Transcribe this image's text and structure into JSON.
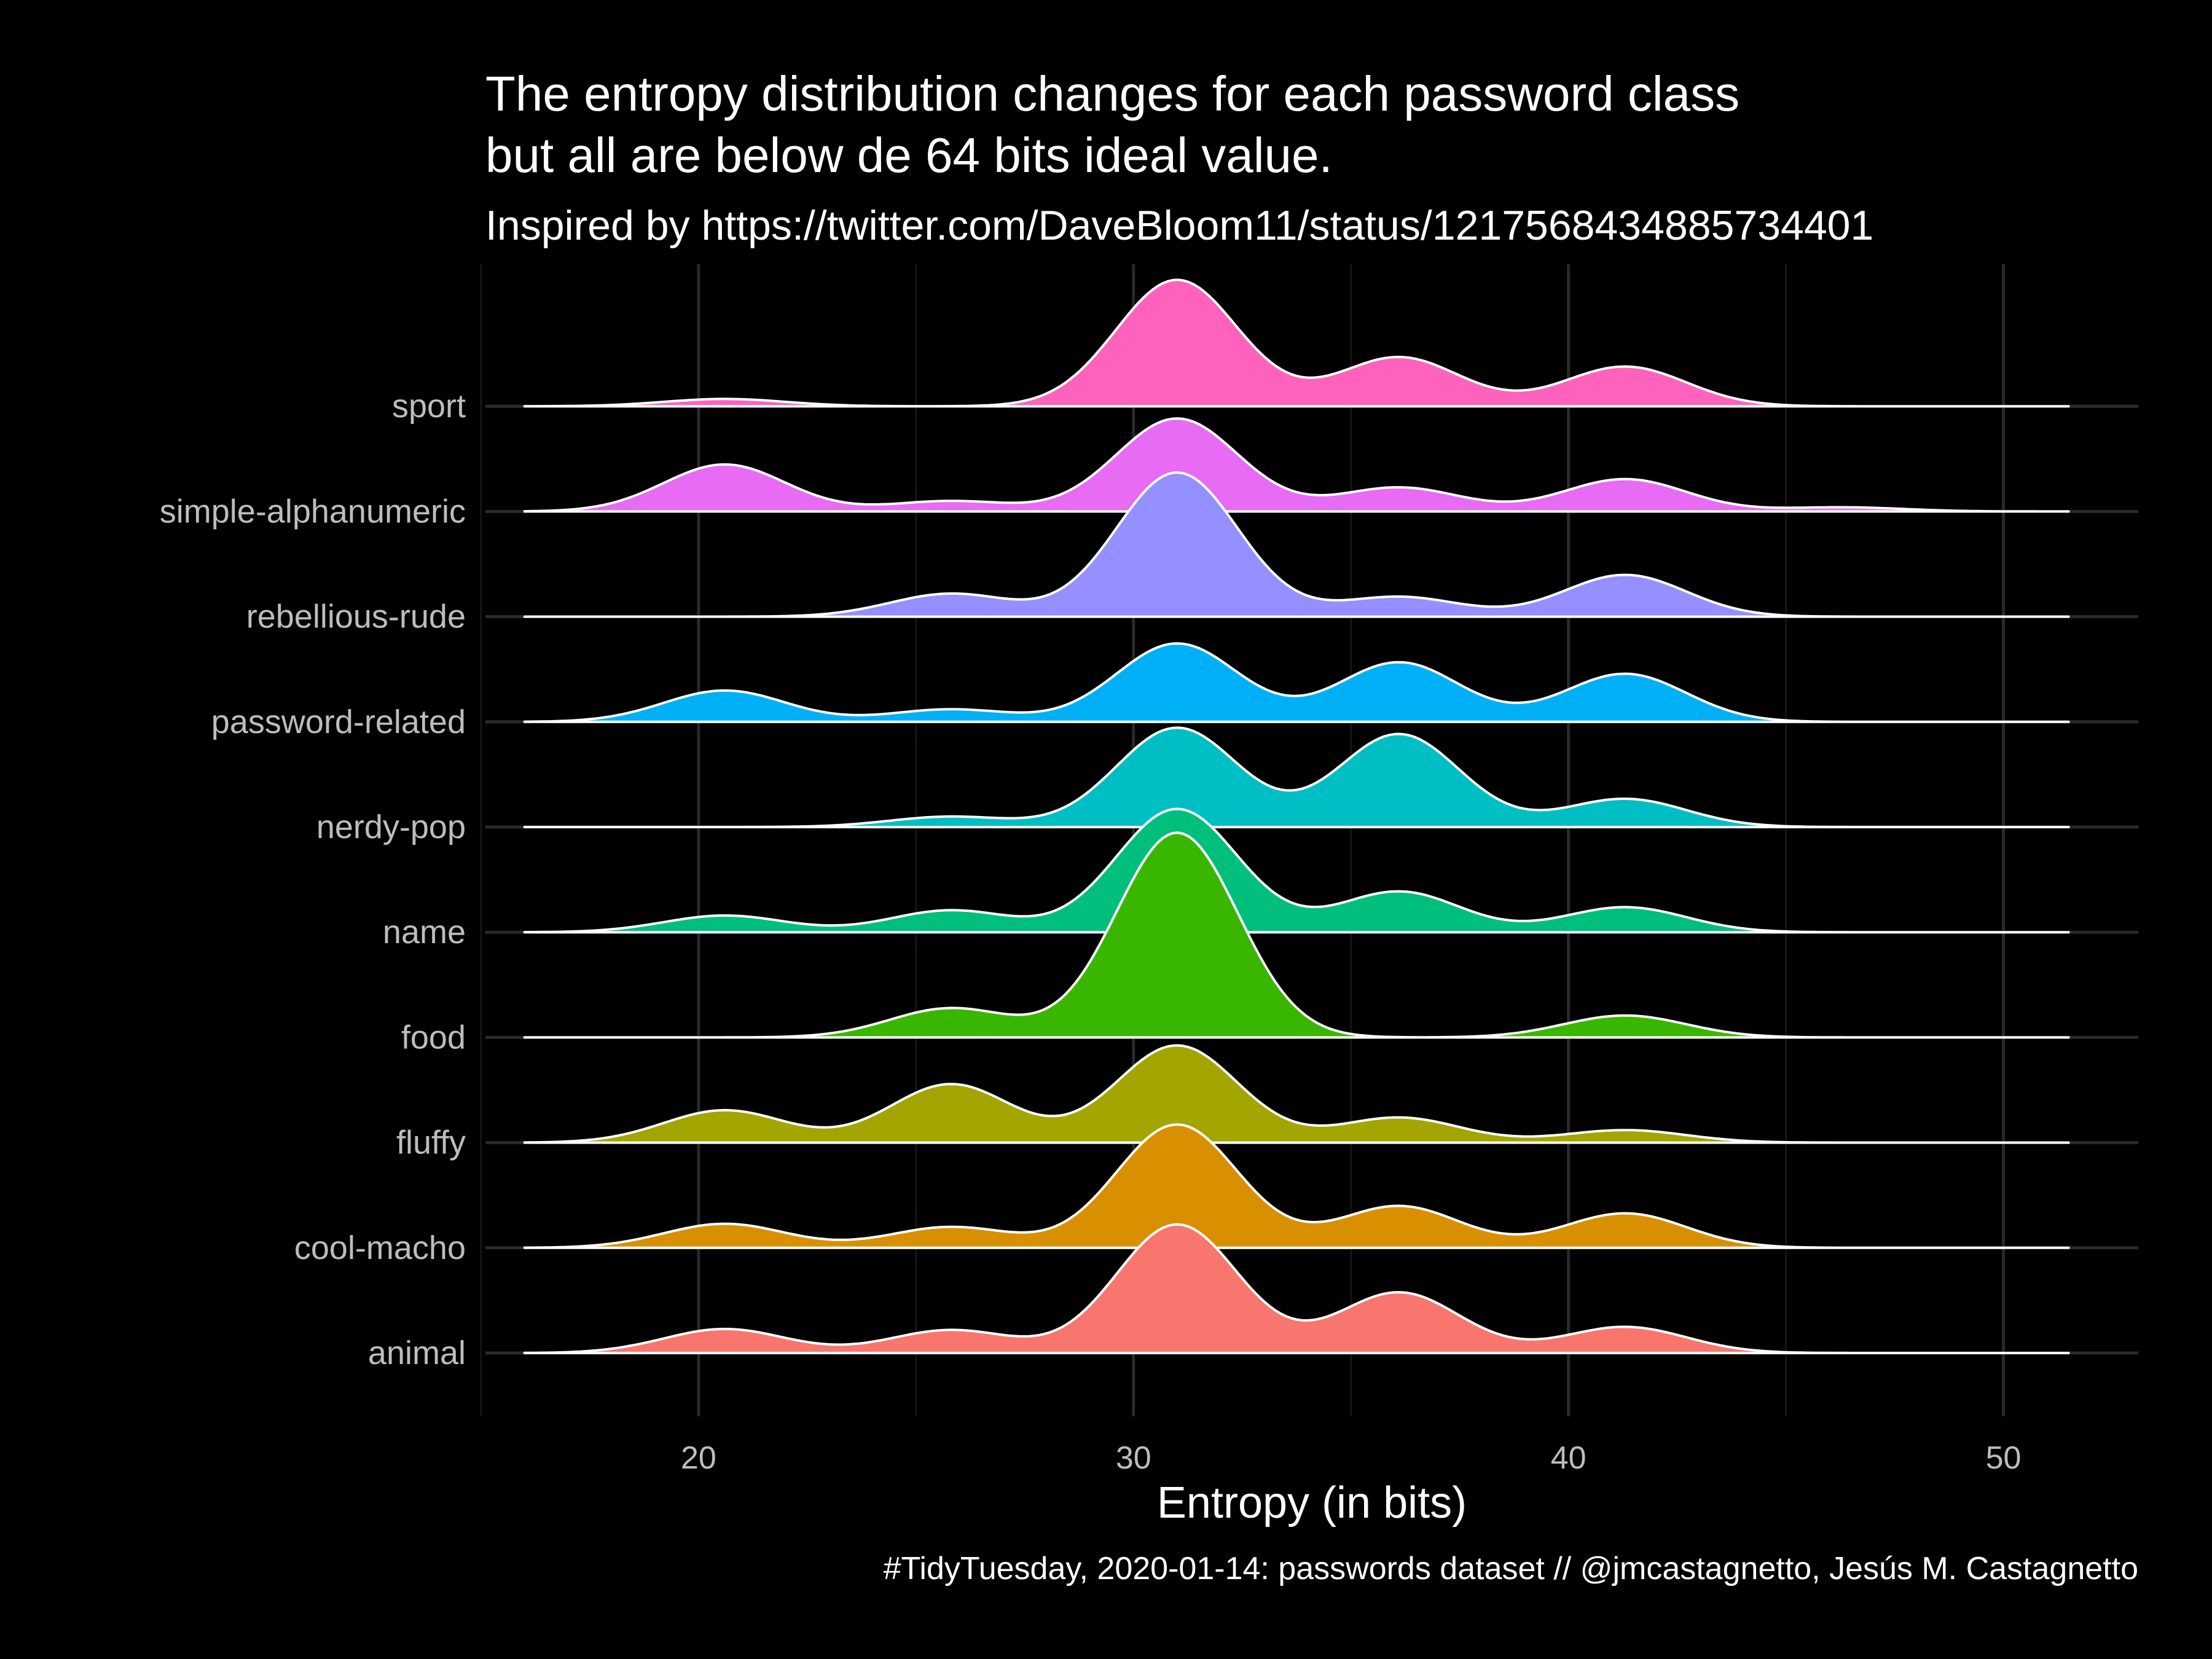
{
  "chart_data": {
    "type": "area",
    "subtype": "ridgeline-density",
    "title": [
      "The entropy distribution changes for each password class",
      "but all are below de 64 bits ideal value."
    ],
    "subtitle": "Inspired by https://twitter.com/DaveBloom11/status/1217568434885734401",
    "caption": "#TidyTuesday, 2020-01-14: passwords dataset // @jmcastagnetto, Jesús M. Castagnetto",
    "xlabel": "Entropy (in bits)",
    "ylabel": "",
    "xlim": [
      15.1,
      53.1
    ],
    "x_ticks": [
      20,
      30,
      40,
      50
    ],
    "x_range_density": [
      16,
      51.5
    ],
    "grid": true,
    "legend": "none",
    "categories": [
      "animal",
      "cool-macho",
      "fluffy",
      "food",
      "name",
      "nerdy-pop",
      "password-related",
      "rebellious-rude",
      "simple-alphanumeric",
      "sport"
    ],
    "peak_components_x": [
      20.6,
      25.8,
      31.0,
      36.1,
      41.3,
      46.3
    ],
    "series": [
      {
        "name": "animal",
        "color": "#F8766D",
        "component_heights": [
          0.23,
          0.22,
          1.23,
          0.58,
          0.25,
          0.0
        ]
      },
      {
        "name": "cool-macho",
        "color": "#D89000",
        "component_heights": [
          0.23,
          0.2,
          1.18,
          0.4,
          0.33,
          0.0
        ]
      },
      {
        "name": "fluffy",
        "color": "#A3A500",
        "component_heights": [
          0.31,
          0.56,
          0.93,
          0.24,
          0.12,
          0.0
        ]
      },
      {
        "name": "food",
        "color": "#39B600",
        "component_heights": [
          0.0,
          0.28,
          1.96,
          0.0,
          0.21,
          0.0
        ]
      },
      {
        "name": "name",
        "color": "#00BF7D",
        "component_heights": [
          0.16,
          0.21,
          1.18,
          0.39,
          0.24,
          0.0
        ]
      },
      {
        "name": "nerdy-pop",
        "color": "#00BFC4",
        "component_heights": [
          0.0,
          0.1,
          0.95,
          0.89,
          0.27,
          0.0
        ]
      },
      {
        "name": "password-related",
        "color": "#00B0F6",
        "component_heights": [
          0.3,
          0.12,
          0.75,
          0.57,
          0.46,
          0.0
        ]
      },
      {
        "name": "rebellious-rude",
        "color": "#9590FF",
        "component_heights": [
          0.0,
          0.22,
          1.38,
          0.19,
          0.4,
          0.0
        ]
      },
      {
        "name": "simple-alphanumeric",
        "color": "#E76BF3",
        "component_heights": [
          0.45,
          0.1,
          0.89,
          0.23,
          0.31,
          0.04
        ]
      },
      {
        "name": "sport",
        "color": "#FF62BC",
        "component_heights": [
          0.07,
          0.0,
          1.21,
          0.47,
          0.38,
          0.0
        ]
      }
    ]
  }
}
